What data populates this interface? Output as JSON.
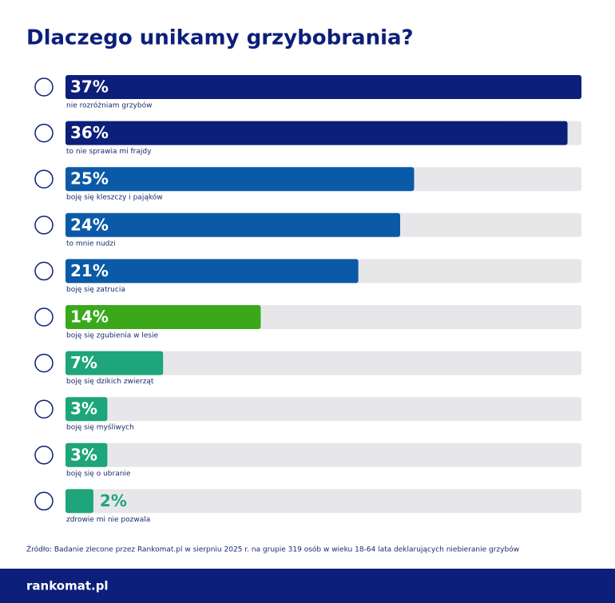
{
  "chart_data": {
    "type": "bar",
    "orientation": "horizontal",
    "title": "Dlaczego unikamy grzybobrania?",
    "categories": [
      "nie rozróżniam grzybów",
      "to nie sprawia mi frajdy",
      "boję się kleszczy i pająków",
      "to mnie nudzi",
      "boję się zatrucia",
      "boję się zgubienia w lesie",
      "boję się dzikich zwierząt",
      "boję się myśliwych",
      "boję się o ubranie",
      "zdrowie mi nie pozwala"
    ],
    "values": [
      37,
      36,
      25,
      24,
      21,
      14,
      7,
      3,
      3,
      2
    ],
    "value_labels": [
      "37%",
      "36%",
      "25%",
      "24%",
      "21%",
      "14%",
      "7%",
      "3%",
      "3%",
      "2%"
    ],
    "colors": [
      "#0c1f7a",
      "#0c1f7a",
      "#0b5aa8",
      "#0b5aa8",
      "#0b5aa8",
      "#3aa81a",
      "#1ea57a",
      "#1ea57a",
      "#1ea57a",
      "#1ea57a"
    ],
    "source": "Źródło: Badanie zlecone przez Rankomat.pl w sierpniu 2025 r. na grupie 319 osób w wieku 18-64 lata deklarujących niebieranie grzybów",
    "brand": "rankomat.pl"
  }
}
